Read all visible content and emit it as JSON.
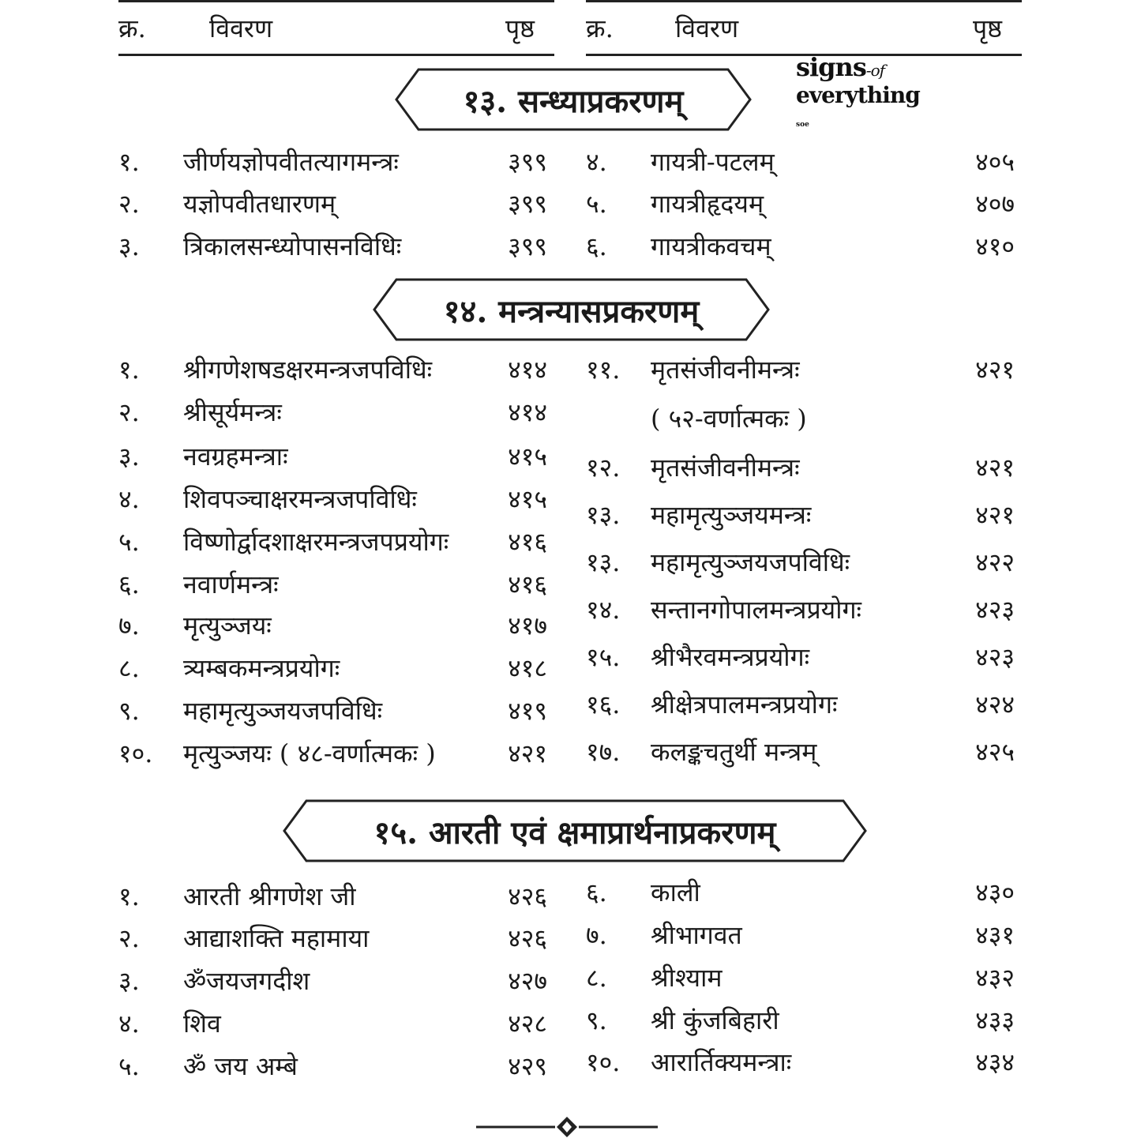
{
  "header": {
    "left": {
      "num": "क्र.",
      "desc": "विवरण",
      "page": "पृष्ठ"
    },
    "right": {
      "num": "क्र.",
      "desc": "विवरण",
      "page": "पृष्ठ"
    }
  },
  "watermark": {
    "line1": "signs",
    "line1_suffix": "-of",
    "line2": "everything",
    "mark": "soe"
  },
  "sections": [
    {
      "title": "१३. सन्ध्याप्रकरणम्",
      "left": [
        {
          "num": "१.",
          "title": "जीर्णयज्ञोपवीतत्यागमन्त्रः",
          "page": "३९९"
        },
        {
          "num": "२.",
          "title": "यज्ञोपवीतधारणम्",
          "page": "३९९"
        },
        {
          "num": "३.",
          "title": "त्रिकालसन्ध्योपासनविधिः",
          "page": "३९९"
        }
      ],
      "right": [
        {
          "num": "४.",
          "title": "गायत्री-पटलम्",
          "page": "४०५"
        },
        {
          "num": "५.",
          "title": "गायत्रीहृदयम्",
          "page": "४०७"
        },
        {
          "num": "६.",
          "title": "गायत्रीकवचम्",
          "page": "४१०"
        }
      ]
    },
    {
      "title": "१४. मन्त्रन्यासप्रकरणम्",
      "left": [
        {
          "num": "१.",
          "title": "श्रीगणेशषडक्षरमन्त्रजपविधिः",
          "page": "४१४"
        },
        {
          "num": "२.",
          "title": "श्रीसूर्यमन्त्रः",
          "page": "४१४"
        },
        {
          "num": "३.",
          "title": "नवग्रहमन्त्राः",
          "page": "४१५"
        },
        {
          "num": "४.",
          "title": "शिवपञ्चाक्षरमन्त्रजपविधिः",
          "page": "४१५"
        },
        {
          "num": "५.",
          "title": "विष्णोर्द्वादशाक्षरमन्त्रजपप्रयोगः",
          "page": "४१६"
        },
        {
          "num": "६.",
          "title": "नवार्णमन्त्रः",
          "page": "४१६"
        },
        {
          "num": "७.",
          "title": "मृत्युञ्जयः",
          "page": "४१७"
        },
        {
          "num": "८.",
          "title": "त्र्यम्बकमन्त्रप्रयोगः",
          "page": "४१८"
        },
        {
          "num": "९.",
          "title": "महामृत्युञ्जयजपविधिः",
          "page": "४१९"
        },
        {
          "num": "१०.",
          "title": "मृत्युञ्जयः ( ४८-वर्णात्मकः )",
          "page": "४२१"
        }
      ],
      "right": [
        {
          "num": "११.",
          "title": "मृतसंजीवनीमन्त्रः",
          "page": "४२१"
        },
        {
          "num": "",
          "title": "( ५२-वर्णात्मकः )",
          "page": ""
        },
        {
          "num": "१२.",
          "title": "मृतसंजीवनीमन्त्रः",
          "page": "४२१"
        },
        {
          "num": "१३.",
          "title": "महामृत्युञ्जयमन्त्रः",
          "page": "४२१"
        },
        {
          "num": "१३.",
          "title": "महामृत्युञ्जयजपविधिः",
          "page": "४२२"
        },
        {
          "num": "१४.",
          "title": "सन्तानगोपालमन्त्रप्रयोगः",
          "page": "४२३"
        },
        {
          "num": "१५.",
          "title": "श्रीभैरवमन्त्रप्रयोगः",
          "page": "४२३"
        },
        {
          "num": "१६.",
          "title": "श्रीक्षेत्रपालमन्त्रप्रयोगः",
          "page": "४२४"
        },
        {
          "num": "१७.",
          "title": "कलङ्कचतुर्थी मन्त्रम्",
          "page": "४२५"
        }
      ]
    },
    {
      "title": "१५. आरती एवं क्षमाप्रार्थनाप्रकरणम्",
      "left": [
        {
          "num": "१.",
          "title": "आरती श्रीगणेश जी",
          "page": "४२६"
        },
        {
          "num": "२.",
          "title": "आद्याशक्ति महामाया",
          "page": "४२६"
        },
        {
          "num": "३.",
          "title": "ॐजयजगदीश",
          "page": "४२७"
        },
        {
          "num": "४.",
          "title": "शिव",
          "page": "४२८"
        },
        {
          "num": "५.",
          "title": "ॐ जय अम्बे",
          "page": "४२९"
        }
      ],
      "right": [
        {
          "num": "६.",
          "title": "काली",
          "page": "४३०"
        },
        {
          "num": "७.",
          "title": "श्रीभागवत",
          "page": "४३१"
        },
        {
          "num": "८.",
          "title": "श्रीश्याम",
          "page": "४३२"
        },
        {
          "num": "९.",
          "title": "श्री कुंजबिहारी",
          "page": "४३३"
        },
        {
          "num": "१०.",
          "title": "आरार्तिक्यमन्त्राः",
          "page": "४३४"
        }
      ]
    }
  ]
}
